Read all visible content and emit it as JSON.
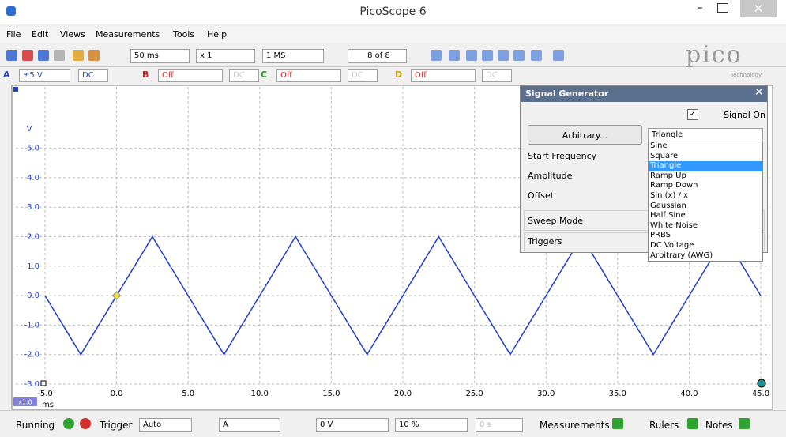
{
  "window": {
    "title": "PicoScope 6"
  },
  "menu": [
    "File",
    "Edit",
    "Views",
    "Measurements",
    "Tools",
    "Help"
  ],
  "toolbar": {
    "timebase": "50 ms",
    "zoom": "x 1",
    "samples": "1 MS",
    "buffer": "8 of 8",
    "logo": "pico",
    "logo_sub": "Technology"
  },
  "channels": [
    {
      "name": "A",
      "range": "±5 V",
      "coupling": "DC"
    },
    {
      "name": "B",
      "range": "Off",
      "coupling": "DC"
    },
    {
      "name": "C",
      "range": "Off",
      "coupling": "DC"
    },
    {
      "name": "D",
      "range": "Off",
      "coupling": "DC"
    }
  ],
  "chart_data": {
    "type": "line",
    "y_label": "V",
    "x_label": "ms",
    "zoom_label": "x1.0",
    "color": "#1f3fc8",
    "x": [
      -5,
      -2.5,
      0,
      2.5,
      5,
      7.5,
      10,
      12.5,
      15,
      17.5,
      20,
      22.5,
      25,
      27.5,
      30,
      32.5,
      35,
      37.5,
      40,
      42.5,
      45
    ],
    "values": [
      0,
      -2,
      0,
      2,
      0,
      -2,
      0,
      2,
      0,
      -2,
      0,
      2,
      0,
      -2,
      0,
      2,
      0,
      -2,
      0,
      2,
      0
    ],
    "xlim": [
      -5,
      45
    ],
    "ylim": [
      -3,
      7
    ],
    "xticks": [
      {
        "value": -5,
        "label": "-5.0"
      },
      {
        "value": 0,
        "label": "0.0"
      },
      {
        "value": 5,
        "label": "5.0"
      },
      {
        "value": 10,
        "label": "10.0"
      },
      {
        "value": 15,
        "label": "15.0"
      },
      {
        "value": 20,
        "label": "20.0"
      },
      {
        "value": 25,
        "label": "25.0"
      },
      {
        "value": 30,
        "label": "30.0"
      },
      {
        "value": 35,
        "label": "35.0"
      },
      {
        "value": 40,
        "label": "40.0"
      },
      {
        "value": 45,
        "label": "45.0"
      }
    ],
    "yticks": [
      {
        "value": 5,
        "label": "5.0"
      },
      {
        "value": 4,
        "label": "4.0"
      },
      {
        "value": 3,
        "label": "3.0"
      },
      {
        "value": 2,
        "label": "2.0"
      },
      {
        "value": 1,
        "label": "1.0"
      },
      {
        "value": 0,
        "label": "0.0"
      },
      {
        "value": -1,
        "label": "-1.0"
      },
      {
        "value": -2,
        "label": "-2.0"
      },
      {
        "value": -3,
        "label": "-3.0"
      }
    ],
    "grid": true
  },
  "signal_generator": {
    "title": "Signal Generator",
    "signal_on": "Signal On",
    "button": "Arbitrary...",
    "selected": "Triangle",
    "options": [
      "Sine",
      "Square",
      "Triangle",
      "Ramp Up",
      "Ramp Down",
      "Sin (x) / x",
      "Gaussian",
      "Half Sine",
      "White Noise",
      "PRBS",
      "DC Voltage",
      "Arbitrary (AWG)"
    ],
    "fields": [
      "Start Frequency",
      "Amplitude",
      "Offset"
    ],
    "sections": [
      "Sweep Mode",
      "Triggers"
    ]
  },
  "status_bar": {
    "state": "Running",
    "trigger_label": "Trigger",
    "trigger_mode": "Auto",
    "trigger_channel": "A",
    "threshold": "0 V",
    "pre_trigger": "10 %",
    "delay": "0 s",
    "measurements": "Measurements",
    "rulers": "Rulers",
    "notes": "Notes"
  }
}
